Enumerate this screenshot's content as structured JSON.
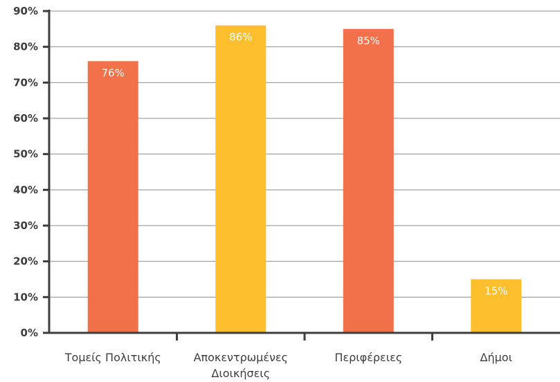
{
  "chart_data": {
    "type": "bar",
    "title": "",
    "xlabel": "",
    "ylabel": "",
    "ylim": [
      0,
      90
    ],
    "y_ticks": [
      "0%",
      "10%",
      "20%",
      "30%",
      "40%",
      "50%",
      "60%",
      "70%",
      "80%",
      "90%"
    ],
    "categories": [
      [
        "Τομείς Πολιτικής"
      ],
      [
        "Αποκεντρωμένες",
        "Διοικήσεις"
      ],
      [
        "Περιφέρειες"
      ],
      [
        "Δήμοι"
      ]
    ],
    "values": [
      76,
      86,
      85,
      15
    ],
    "data_labels": [
      "76%",
      "86%",
      "85%",
      "15%"
    ],
    "colors": [
      "#f2704a",
      "#fdbf2d",
      "#f2704a",
      "#fdbf2d"
    ],
    "grid": true,
    "legend": "none"
  }
}
